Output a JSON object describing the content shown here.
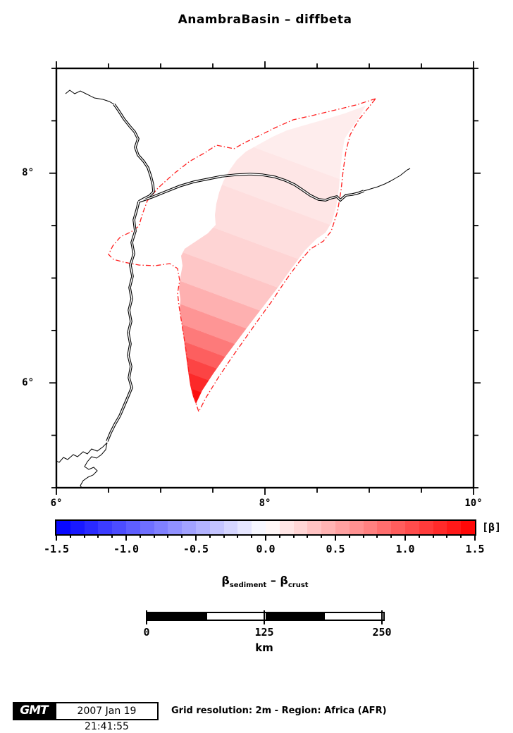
{
  "title": "AnambraBasin – diffbeta",
  "map": {
    "x_tick_labels": [
      "6°",
      "8°",
      "10°"
    ],
    "y_tick_labels": [
      "8°",
      "6°"
    ]
  },
  "colorbar": {
    "min": -1.5,
    "max": 1.5,
    "step": 0.1,
    "tick_labels": [
      "-1.5",
      "-1.0",
      "-0.5",
      "0.0",
      "0.5",
      "1.0",
      "1.5"
    ],
    "unit_label": "[β]",
    "neg_color": "#0000ff",
    "mid_color": "#ffffff",
    "pos_color": "#ff0000"
  },
  "caption": {
    "beta1": "β",
    "sub1": "sediment",
    "dash": " – ",
    "beta2": "β",
    "sub2": "crust"
  },
  "scalebar": {
    "tick_labels": [
      "0",
      "125",
      "250"
    ],
    "unit": "km"
  },
  "footer": {
    "logo_text": "GMT",
    "timestamp": "2007 Jan 19 21:41:55",
    "note": "Grid resolution: 2m - Region: Africa (AFR)"
  }
}
